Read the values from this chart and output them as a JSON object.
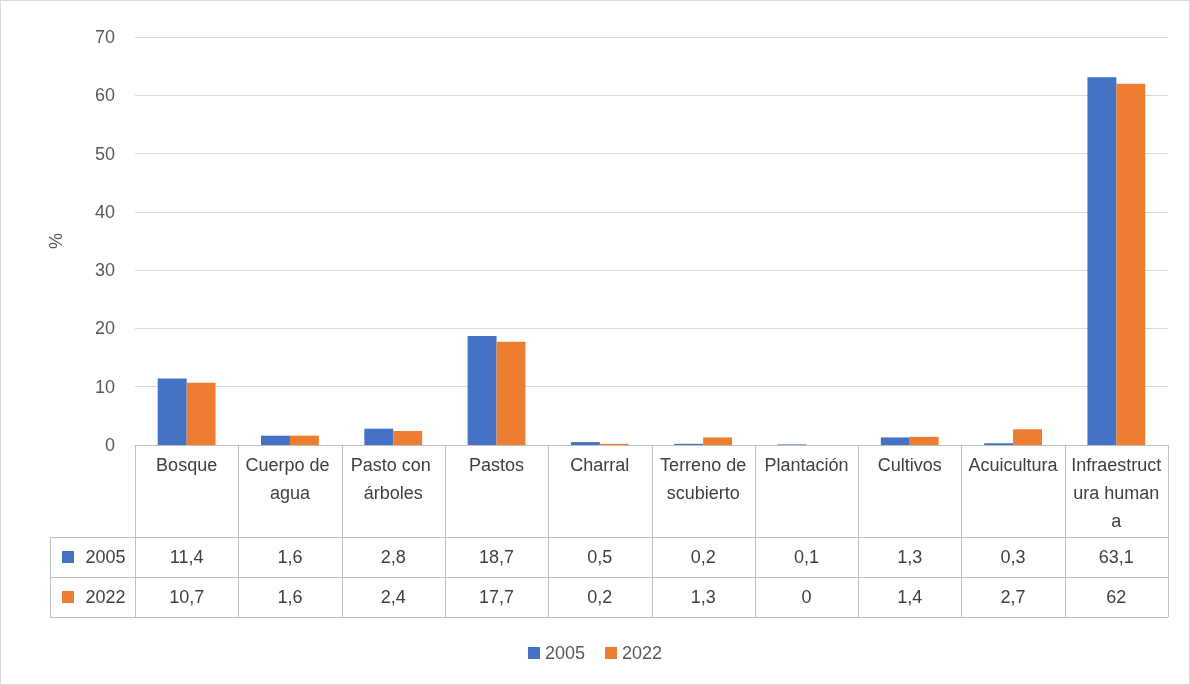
{
  "chart_data": {
    "type": "bar",
    "ylabel": "%",
    "categories": [
      "Bosque",
      "Cuerpo de agua",
      "Pasto con árboles",
      "Pastos",
      "Charral",
      "Terreno descubierto",
      "Plantación",
      "Cultivos",
      "Acuicultura",
      "Infraestructura humana"
    ],
    "series": [
      {
        "name": "2005",
        "color": "#4472c4",
        "values": [
          11.4,
          1.6,
          2.8,
          18.7,
          0.5,
          0.2,
          0.1,
          1.3,
          0.3,
          63.1
        ],
        "value_labels": [
          "11,4",
          "1,6",
          "2,8",
          "18,7",
          "0,5",
          "0,2",
          "0,1",
          "1,3",
          "0,3",
          "63,1"
        ]
      },
      {
        "name": "2022",
        "color": "#ed7d31",
        "values": [
          10.7,
          1.6,
          2.4,
          17.7,
          0.2,
          1.3,
          0,
          1.4,
          2.7,
          62
        ],
        "value_labels": [
          "10,7",
          "1,6",
          "2,4",
          "17,7",
          "0,2",
          "1,3",
          "0",
          "1,4",
          "2,7",
          "62"
        ]
      }
    ],
    "ylim": [
      0,
      70
    ],
    "yticks": [
      0,
      10,
      20,
      30,
      40,
      50,
      60,
      70
    ],
    "grid": "y",
    "legend": "bottom"
  }
}
